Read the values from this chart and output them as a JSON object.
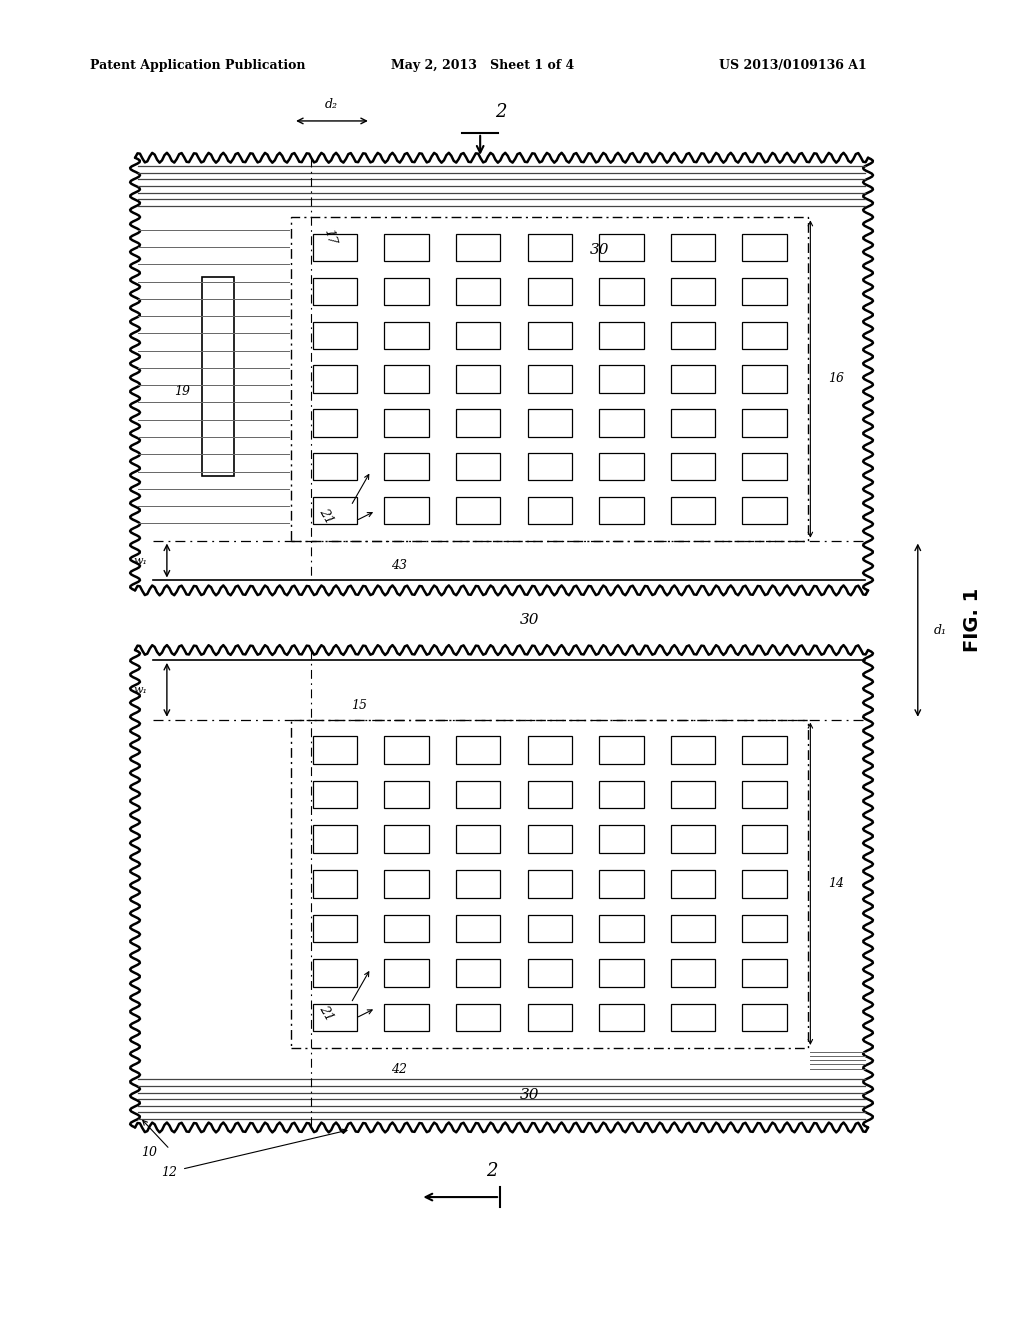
{
  "bg_color": "#ffffff",
  "line_color": "#000000",
  "fig_width": 10.24,
  "fig_height": 13.2,
  "header_text": "Patent Application Publication",
  "header_date": "May 2, 2013   Sheet 1 of 4",
  "header_patent": "US 2013/0109136 A1",
  "fig_label": "FIG. 1"
}
